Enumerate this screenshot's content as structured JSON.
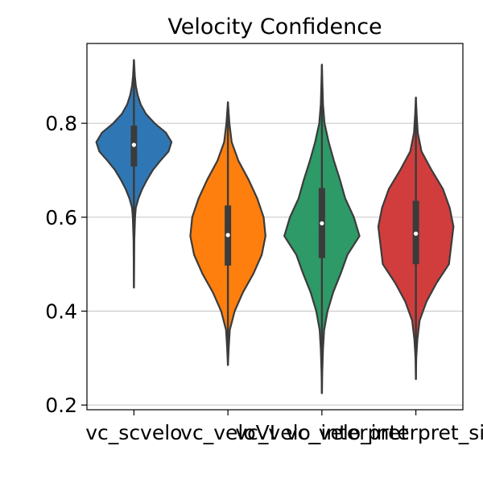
{
  "chart_data": {
    "type": "violin",
    "title": "Velocity Confidence",
    "xlabel": "",
    "ylabel": "",
    "categories": [
      "vc_scvelo",
      "vc_veloVI",
      "vc_velovi_interpret",
      "vc_velovi_interpret_singlet"
    ],
    "category_labels_visible": [
      "vc_scvelo",
      "vc_veloVI",
      "vc_velo_interpret",
      "vc_velo_interpret_singlet_"
    ],
    "ylim": [
      0.19,
      0.97
    ],
    "yticks": [
      0.2,
      0.4,
      0.6,
      0.8
    ],
    "ytick_labels": [
      "0.2",
      "0.4",
      "0.6",
      "0.8"
    ],
    "grid": "horizontal",
    "series": [
      {
        "color": "#2f77b4",
        "min": 0.45,
        "max": 0.935,
        "q1": 0.708,
        "median": 0.754,
        "q3": 0.795,
        "density": [
          [
            0.45,
            0.0
          ],
          [
            0.5,
            0.005
          ],
          [
            0.55,
            0.01
          ],
          [
            0.6,
            0.03
          ],
          [
            0.62,
            0.05
          ],
          [
            0.64,
            0.12
          ],
          [
            0.66,
            0.22
          ],
          [
            0.68,
            0.35
          ],
          [
            0.7,
            0.5
          ],
          [
            0.72,
            0.7
          ],
          [
            0.74,
            0.92
          ],
          [
            0.76,
            1.0
          ],
          [
            0.78,
            0.85
          ],
          [
            0.8,
            0.55
          ],
          [
            0.82,
            0.32
          ],
          [
            0.84,
            0.18
          ],
          [
            0.86,
            0.1
          ],
          [
            0.88,
            0.05
          ],
          [
            0.9,
            0.025
          ],
          [
            0.935,
            0.0
          ]
        ]
      },
      {
        "color": "#ff7f0e",
        "min": 0.285,
        "max": 0.845,
        "q1": 0.497,
        "median": 0.562,
        "q3": 0.625,
        "density": [
          [
            0.285,
            0.0
          ],
          [
            0.32,
            0.02
          ],
          [
            0.36,
            0.05
          ],
          [
            0.4,
            0.18
          ],
          [
            0.44,
            0.4
          ],
          [
            0.48,
            0.68
          ],
          [
            0.52,
            0.9
          ],
          [
            0.56,
            1.0
          ],
          [
            0.6,
            0.95
          ],
          [
            0.64,
            0.78
          ],
          [
            0.68,
            0.55
          ],
          [
            0.72,
            0.28
          ],
          [
            0.76,
            0.1
          ],
          [
            0.8,
            0.04
          ],
          [
            0.845,
            0.0
          ]
        ]
      },
      {
        "color": "#2e9a67",
        "min": 0.225,
        "max": 0.925,
        "q1": 0.513,
        "median": 0.587,
        "q3": 0.662,
        "density": [
          [
            0.225,
            0.0
          ],
          [
            0.27,
            0.01
          ],
          [
            0.32,
            0.03
          ],
          [
            0.36,
            0.06
          ],
          [
            0.4,
            0.15
          ],
          [
            0.44,
            0.3
          ],
          [
            0.48,
            0.5
          ],
          [
            0.52,
            0.68
          ],
          [
            0.56,
            1.0
          ],
          [
            0.6,
            0.85
          ],
          [
            0.64,
            0.62
          ],
          [
            0.68,
            0.48
          ],
          [
            0.72,
            0.32
          ],
          [
            0.76,
            0.18
          ],
          [
            0.8,
            0.07
          ],
          [
            0.84,
            0.03
          ],
          [
            0.88,
            0.015
          ],
          [
            0.925,
            0.0
          ]
        ]
      },
      {
        "color": "#d13d3d",
        "min": 0.255,
        "max": 0.855,
        "q1": 0.5,
        "median": 0.565,
        "q3": 0.635,
        "density": [
          [
            0.255,
            0.0
          ],
          [
            0.3,
            0.01
          ],
          [
            0.34,
            0.04
          ],
          [
            0.38,
            0.1
          ],
          [
            0.42,
            0.28
          ],
          [
            0.46,
            0.55
          ],
          [
            0.5,
            0.88
          ],
          [
            0.54,
            0.94
          ],
          [
            0.58,
            1.0
          ],
          [
            0.62,
            0.9
          ],
          [
            0.66,
            0.72
          ],
          [
            0.7,
            0.42
          ],
          [
            0.74,
            0.15
          ],
          [
            0.78,
            0.05
          ],
          [
            0.82,
            0.02
          ],
          [
            0.855,
            0.0
          ]
        ]
      }
    ]
  }
}
